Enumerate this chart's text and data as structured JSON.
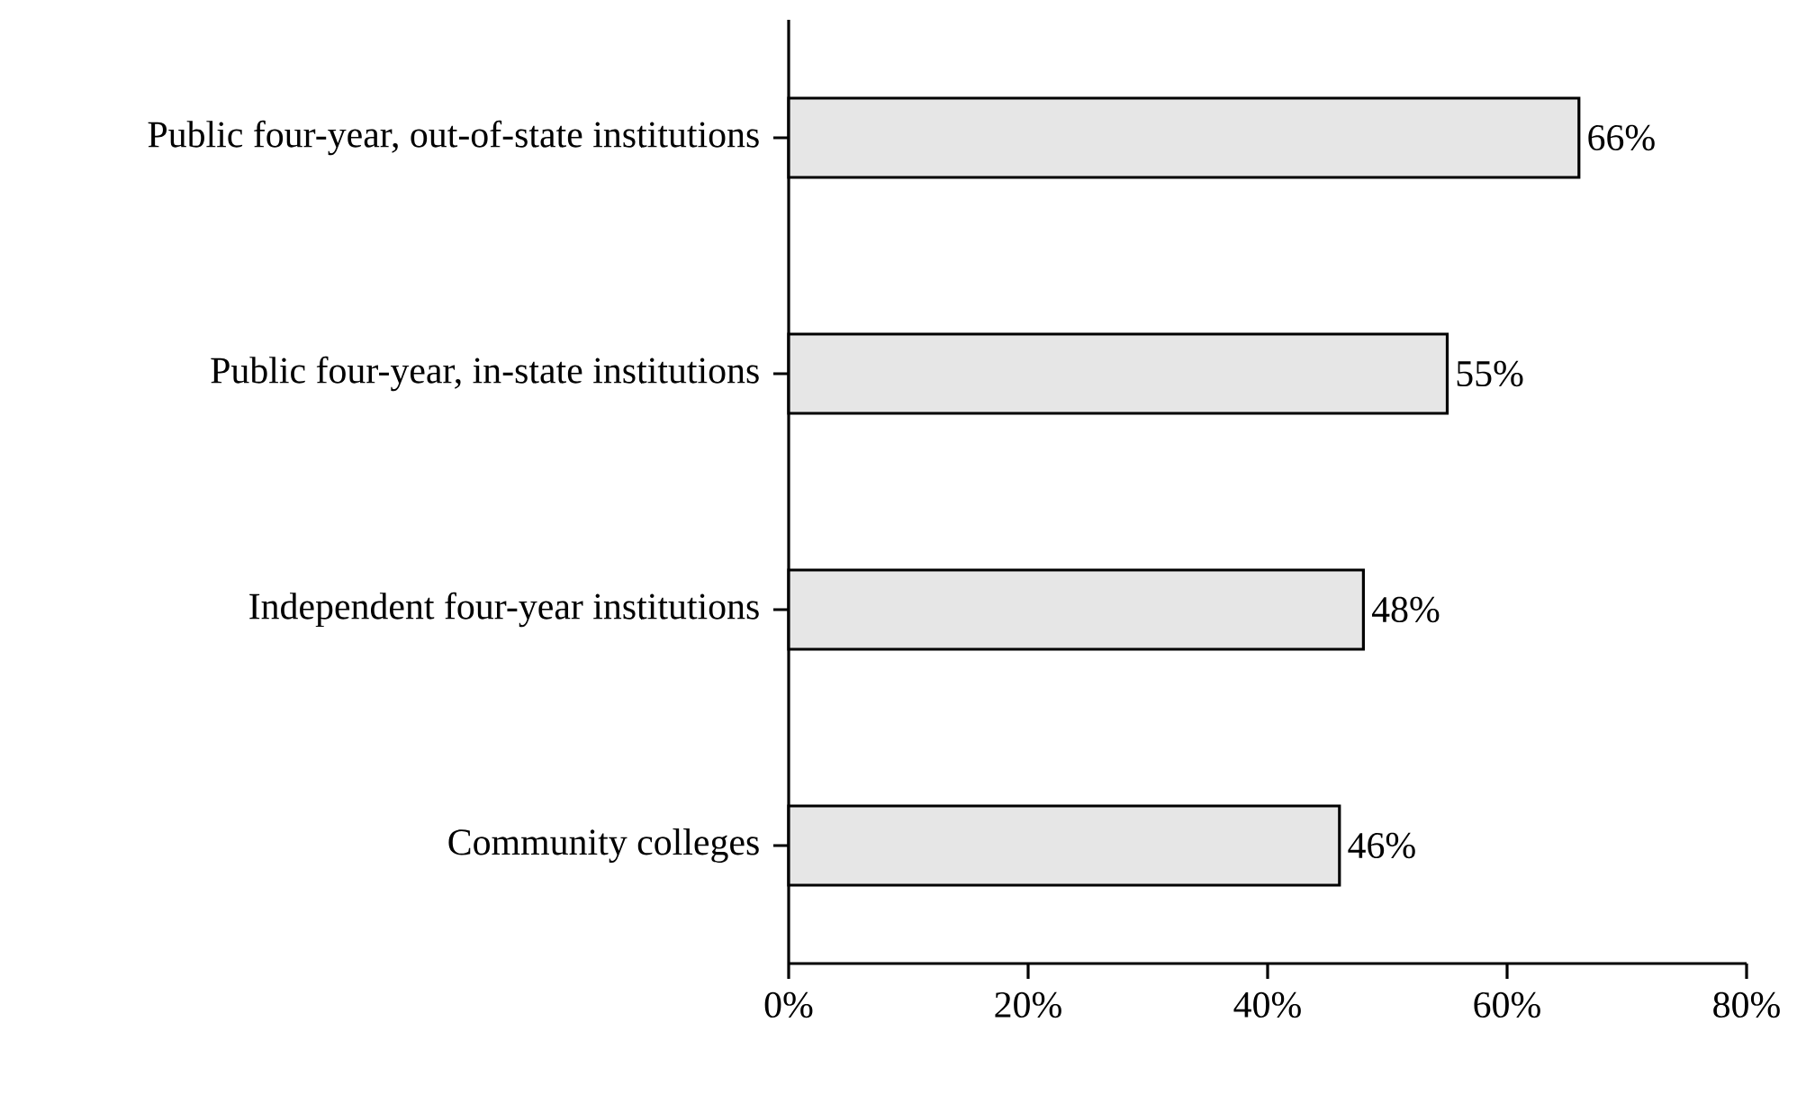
{
  "chart_data": {
    "type": "bar",
    "orientation": "horizontal",
    "categories": [
      "Public four-year, out-of-state institutions",
      "Public four-year, in-state institutions",
      "Independent four-year institutions",
      "Community colleges"
    ],
    "values": [
      66,
      55,
      48,
      46
    ],
    "value_labels": [
      "66%",
      "55%",
      "48%",
      "46%"
    ],
    "color": "#e6e6e6",
    "xlim": [
      0,
      80
    ],
    "xticks": [
      {
        "value": 0,
        "label": "0%"
      },
      {
        "value": 20,
        "label": "20%"
      },
      {
        "value": 40,
        "label": "40%"
      },
      {
        "value": 60,
        "label": "60%"
      },
      {
        "value": 80,
        "label": "80%"
      }
    ],
    "grid": false
  }
}
